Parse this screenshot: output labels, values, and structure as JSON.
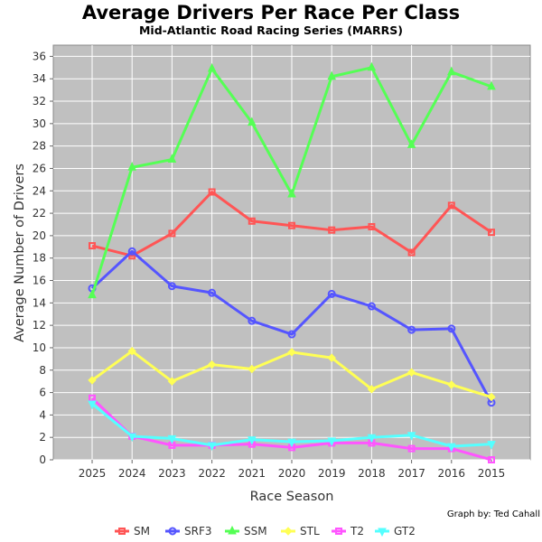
{
  "chart_data": {
    "type": "line",
    "title": "Average Drivers Per Race Per Class",
    "subtitle": "Mid-Atlantic Road Racing Series (MARRS)",
    "xlabel": "Race Season",
    "ylabel": "Average Number of Drivers",
    "credit": "Graph by: Ted Cahall",
    "categories": [
      "2025",
      "2024",
      "2023",
      "2022",
      "2021",
      "2020",
      "2019",
      "2018",
      "2017",
      "2016",
      "2015"
    ],
    "ylim": [
      0,
      37
    ],
    "yticks": [
      0,
      2,
      4,
      6,
      8,
      10,
      12,
      14,
      16,
      18,
      20,
      22,
      24,
      26,
      28,
      30,
      32,
      34,
      36
    ],
    "grid": true,
    "plot_background": "#c0c0c0",
    "legend_position": "bottom",
    "series": [
      {
        "name": "SM",
        "color": "#ff5555",
        "marker": "square",
        "values": [
          19.1,
          18.2,
          20.2,
          23.9,
          21.3,
          20.9,
          20.5,
          20.8,
          18.5,
          22.7,
          20.3
        ]
      },
      {
        "name": "SRF3",
        "color": "#5555ff",
        "marker": "circle",
        "values": [
          15.3,
          18.6,
          15.5,
          14.9,
          12.4,
          11.2,
          14.8,
          13.7,
          11.6,
          11.7,
          5.1
        ]
      },
      {
        "name": "SSM",
        "color": "#55ff55",
        "marker": "triangle-up",
        "values": [
          14.7,
          26.1,
          26.8,
          34.9,
          30.1,
          23.7,
          34.2,
          35.0,
          28.1,
          34.6,
          33.3
        ]
      },
      {
        "name": "STL",
        "color": "#ffff55",
        "marker": "diamond",
        "values": [
          7.1,
          9.7,
          7.0,
          8.5,
          8.1,
          9.6,
          9.1,
          6.3,
          7.8,
          6.7,
          5.6
        ]
      },
      {
        "name": "T2",
        "color": "#ff55ff",
        "marker": "square",
        "values": [
          5.5,
          2.1,
          1.3,
          1.3,
          1.4,
          1.1,
          1.5,
          1.5,
          1.0,
          1.0,
          0.0
        ]
      },
      {
        "name": "GT2",
        "color": "#55ffff",
        "marker": "triangle-down",
        "values": [
          5.0,
          2.1,
          1.9,
          1.3,
          1.8,
          1.6,
          1.7,
          2.0,
          2.2,
          1.2,
          1.4
        ]
      }
    ]
  }
}
